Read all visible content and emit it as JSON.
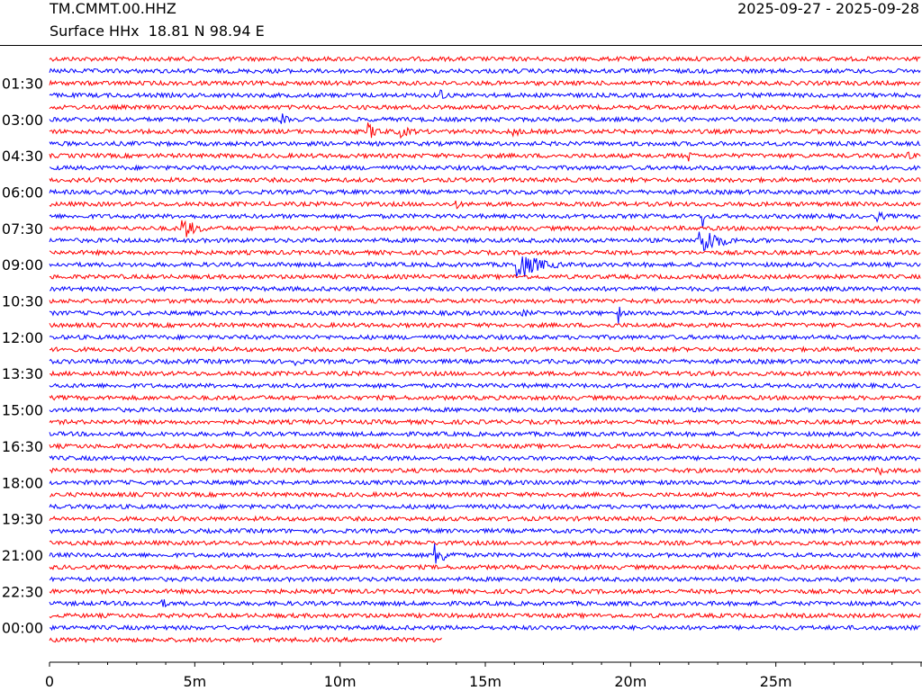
{
  "header": {
    "station": "TM.CMMT.00.HHZ",
    "location": "Surface HHx  18.81 N 98.94 E",
    "date_range": "2025-09-27 - 2025-09-28"
  },
  "colors": {
    "odd": "#ff0000",
    "even": "#0000ff"
  },
  "chart_data": {
    "type": "line",
    "title": "TM.CMMT.00.HHZ",
    "subtitle": "Surface HHx  18.81 N 98.94 E",
    "date_range": "2025-09-27 - 2025-09-28",
    "xlabel": "",
    "ylabel": "",
    "xlim": [
      0,
      30
    ],
    "x_unit": "minutes",
    "x_ticks": [
      0,
      5,
      10,
      15,
      20,
      25
    ],
    "x_tick_labels": [
      "0",
      "5m",
      "10m",
      "15m",
      "20m",
      "25m"
    ],
    "row_minutes": 30,
    "row_count": 49,
    "last_row_end_minute": 13.5,
    "y_tick_rows": [
      3,
      6,
      9,
      12,
      15,
      18,
      21,
      24,
      27,
      30,
      33,
      36,
      39,
      42,
      45,
      48
    ],
    "y_tick_labels": [
      "01:30",
      "03:00",
      "04:30",
      "06:00",
      "07:30",
      "09:00",
      "10:30",
      "12:00",
      "13:30",
      "15:00",
      "16:30",
      "18:00",
      "19:30",
      "21:00",
      "22:30",
      "00:00"
    ],
    "row_colors": [
      "#ff0000",
      "#0000ff"
    ],
    "events": [
      {
        "row": 4,
        "minute": 13.5,
        "amplitude": 0.55,
        "duration": 0.2
      },
      {
        "row": 6,
        "minute": 8.0,
        "amplitude": 0.4,
        "duration": 0.4
      },
      {
        "row": 7,
        "minute": 11.0,
        "amplitude": 0.6,
        "duration": 0.8
      },
      {
        "row": 7,
        "minute": 12.0,
        "amplitude": 0.5,
        "duration": 0.9
      },
      {
        "row": 7,
        "minute": 16.0,
        "amplitude": 0.4,
        "duration": 0.4
      },
      {
        "row": 9,
        "minute": 22.0,
        "amplitude": 0.4,
        "duration": 0.3
      },
      {
        "row": 9,
        "minute": 29.5,
        "amplitude": 0.4,
        "duration": 0.3
      },
      {
        "row": 13,
        "minute": 14.0,
        "amplitude": 0.35,
        "duration": 0.3
      },
      {
        "row": 14,
        "minute": 28.5,
        "amplitude": 0.4,
        "duration": 0.5
      },
      {
        "row": 14,
        "minute": 22.5,
        "amplitude": 1.1,
        "duration": 0.1
      },
      {
        "row": 15,
        "minute": 4.6,
        "amplitude": 0.9,
        "duration": 1.0
      },
      {
        "row": 16,
        "minute": 22.4,
        "amplitude": 1.6,
        "duration": 1.3
      },
      {
        "row": 18,
        "minute": 16.1,
        "amplitude": 1.4,
        "duration": 1.6
      },
      {
        "row": 18,
        "minute": 22.4,
        "amplitude": 0.8,
        "duration": 0.1
      },
      {
        "row": 22,
        "minute": 19.6,
        "amplitude": 0.8,
        "duration": 0.1
      },
      {
        "row": 22,
        "minute": 16.3,
        "amplitude": 0.35,
        "duration": 0.3
      },
      {
        "row": 26,
        "minute": 8.5,
        "amplitude": 0.35,
        "duration": 0.3
      },
      {
        "row": 35,
        "minute": 28.5,
        "amplitude": 0.4,
        "duration": 0.5
      },
      {
        "row": 42,
        "minute": 13.3,
        "amplitude": 0.9,
        "duration": 0.9
      },
      {
        "row": 46,
        "minute": 3.9,
        "amplitude": 0.35,
        "duration": 0.3
      }
    ]
  }
}
